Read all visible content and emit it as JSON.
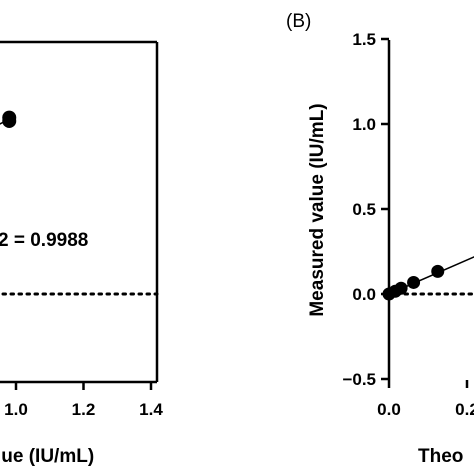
{
  "chart_data": [
    {
      "type": "scatter",
      "panel": "A",
      "xlabel": "lue (IU/mL)",
      "x_ticks": [
        "1.0",
        "1.2",
        "1.4"
      ],
      "xlim": [
        0.8,
        1.4
      ],
      "ylim": [
        -0.5,
        1.5
      ],
      "series": [
        {
          "x": [
            0.98,
            0.98
          ],
          "y": [
            1.05,
            1.03
          ]
        }
      ],
      "fit_line": {
        "x": [
          0.8,
          0.98
        ],
        "y": [
          0.86,
          1.04
        ]
      },
      "reference_line": {
        "style": "dotted",
        "y": 0.0
      },
      "annotation": "2 = 0.9988",
      "grid": false
    },
    {
      "type": "scatter",
      "panel": "B",
      "panel_label": "(B)",
      "xlabel": "Theo",
      "ylabel": "Measured value (IU/mL)",
      "y_ticks": [
        "1.5",
        "1.0",
        "0.5",
        "0.0",
        "−0.5"
      ],
      "x_ticks": [
        "0.0",
        "0.2"
      ],
      "xlim": [
        -0.02,
        0.45
      ],
      "ylim": [
        -0.5,
        1.5
      ],
      "series": [
        {
          "x": [
            0.0,
            0.016,
            0.031,
            0.063,
            0.125
          ],
          "y": [
            0.0,
            0.016,
            0.034,
            0.068,
            0.133
          ]
        }
      ],
      "fit_line": {
        "x": [
          0.0,
          0.45
        ],
        "y": [
          0.0,
          0.45
        ]
      },
      "reference_line": {
        "style": "dotted",
        "y": 0.0
      },
      "grid": false
    }
  ]
}
